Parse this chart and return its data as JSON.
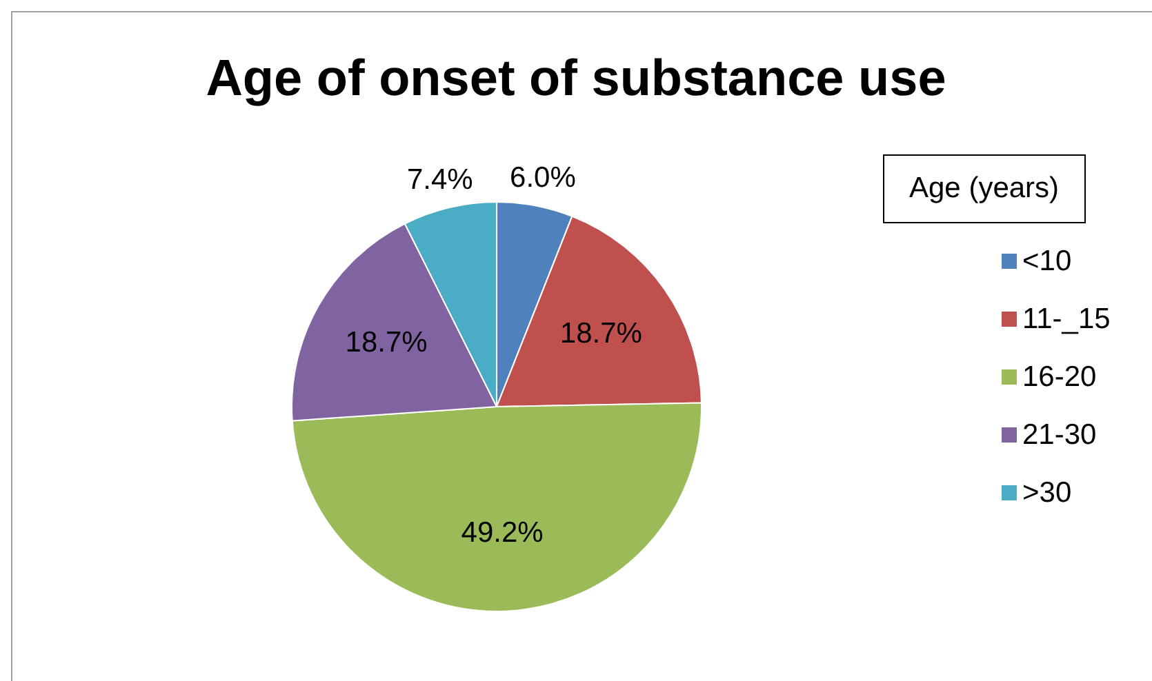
{
  "chart_data": {
    "type": "pie",
    "title": "Age of onset of substance use",
    "legend_title": "Age (years)",
    "legend": "right",
    "categories": [
      "<10",
      "11-_15",
      "16-20",
      "21-30",
      ">30"
    ],
    "values": [
      6.0,
      18.7,
      49.2,
      18.7,
      7.4
    ],
    "colors": [
      "#4f81bd",
      "#c0504d",
      "#9bbb59",
      "#8064a2",
      "#4bacc6"
    ],
    "value_labels": [
      "6.0%",
      "18.7%",
      "49.2%",
      "18.7%",
      "7.4%"
    ]
  }
}
